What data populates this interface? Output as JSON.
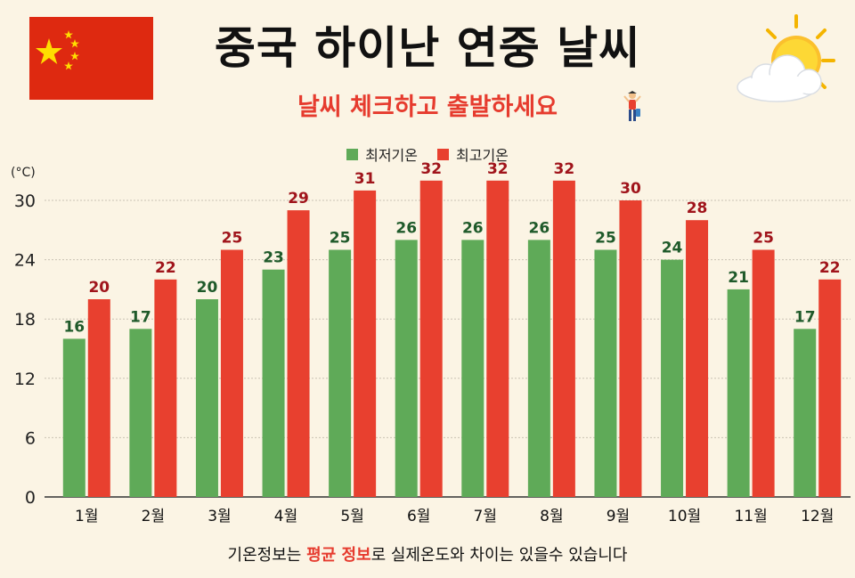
{
  "header": {
    "title": "중국 하이난 연중 날씨",
    "subtitle": "날씨 체크하고 출발하세요"
  },
  "icons": {
    "flag": "china-flag-icon",
    "weather": "sun-cloud-icon",
    "traveler": "traveler-icon"
  },
  "colors": {
    "low": "#5faa58",
    "high": "#e8402f",
    "low_label": "#1f5a2a",
    "high_label": "#a0141b",
    "flag_red": "#de2910",
    "flag_star": "#ffde00"
  },
  "footer": {
    "note_part1": "기온정보는 ",
    "note_highlight": "평균 정보",
    "note_part2": "로 실제온도와 차이는 있을수 있습니다"
  },
  "chart_data": {
    "type": "bar",
    "unit_label": "(°C)",
    "categories": [
      "1월",
      "2월",
      "3월",
      "4월",
      "5월",
      "6월",
      "7월",
      "8월",
      "9월",
      "10월",
      "11월",
      "12월"
    ],
    "series": [
      {
        "name": "최저기온",
        "values": [
          16,
          17,
          20,
          23,
          25,
          26,
          26,
          26,
          25,
          24,
          21,
          17
        ]
      },
      {
        "name": "최고기온",
        "values": [
          20,
          22,
          25,
          29,
          31,
          32,
          32,
          32,
          30,
          28,
          25,
          22
        ]
      }
    ],
    "yticks": [
      0,
      6,
      12,
      18,
      24,
      30
    ],
    "ylim": [
      0,
      30
    ],
    "grid": true,
    "legend_position": "top-center"
  }
}
